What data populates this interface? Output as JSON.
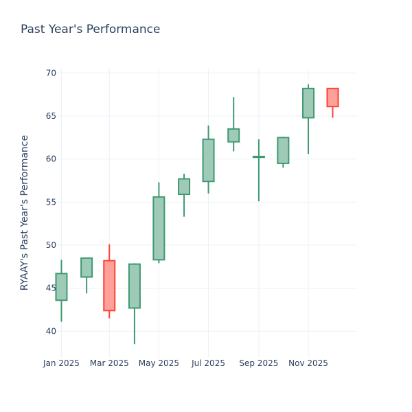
{
  "chart_data": {
    "type": "candlestick",
    "title": "Past Year's Performance",
    "ylabel": "RYAAY's Past Year's Performance",
    "xlabel": "",
    "ylim": [
      37.0,
      70.5
    ],
    "xlim": [
      "2024-12-24",
      "2025-12-31"
    ],
    "y_ticks": [
      40,
      45,
      50,
      55,
      60,
      65,
      70
    ],
    "x_ticks": [
      {
        "date": "2025-01-01",
        "label": "Jan 2025"
      },
      {
        "date": "2025-03-01",
        "label": "Mar 2025"
      },
      {
        "date": "2025-05-01",
        "label": "May 2025"
      },
      {
        "date": "2025-07-01",
        "label": "Jul 2025"
      },
      {
        "date": "2025-09-01",
        "label": "Sep 2025"
      },
      {
        "date": "2025-11-01",
        "label": "Nov 2025"
      }
    ],
    "grid": true,
    "increasing_color": "#3d9970",
    "increasing_fill": "#9ecab7",
    "decreasing_color": "#ff4136",
    "decreasing_fill": "#ffa09b",
    "candles": [
      {
        "date": "2025-01-01",
        "open": 43.6,
        "high": 48.3,
        "low": 41.1,
        "close": 46.7
      },
      {
        "date": "2025-02-01",
        "open": 46.3,
        "high": 48.5,
        "low": 44.4,
        "close": 48.5
      },
      {
        "date": "2025-03-01",
        "open": 48.2,
        "high": 50.1,
        "low": 41.5,
        "close": 42.4
      },
      {
        "date": "2025-04-01",
        "open": 42.7,
        "high": 47.9,
        "low": 38.5,
        "close": 47.8
      },
      {
        "date": "2025-05-01",
        "open": 48.3,
        "high": 57.3,
        "low": 47.9,
        "close": 55.6
      },
      {
        "date": "2025-06-01",
        "open": 55.9,
        "high": 58.3,
        "low": 53.3,
        "close": 57.7
      },
      {
        "date": "2025-07-01",
        "open": 57.4,
        "high": 63.9,
        "low": 56.0,
        "close": 62.3
      },
      {
        "date": "2025-08-01",
        "open": 62.0,
        "high": 67.2,
        "low": 60.9,
        "close": 63.5
      },
      {
        "date": "2025-09-01",
        "open": 60.2,
        "high": 62.3,
        "low": 55.1,
        "close": 60.3
      },
      {
        "date": "2025-10-01",
        "open": 59.5,
        "high": 62.6,
        "low": 59.0,
        "close": 62.5
      },
      {
        "date": "2025-11-01",
        "open": 64.8,
        "high": 68.7,
        "low": 60.6,
        "close": 68.2
      },
      {
        "date": "2025-12-01",
        "open": 68.2,
        "high": 68.2,
        "low": 64.8,
        "close": 66.1
      }
    ]
  }
}
